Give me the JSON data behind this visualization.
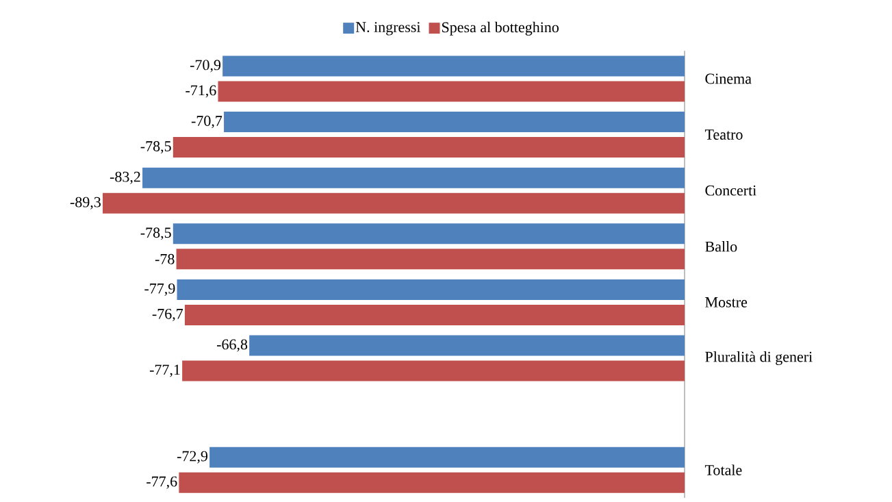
{
  "chart_data": {
    "type": "bar",
    "orientation": "horizontal",
    "categories": [
      "Cinema",
      "Teatro",
      "Concerti",
      "Ballo",
      "Mostre",
      "Pluralità di generi",
      null,
      "Totale"
    ],
    "series": [
      {
        "name": "N. ingressi",
        "color": "#4f81bd",
        "values": [
          -70.9,
          -70.7,
          -83.2,
          -78.5,
          -77.9,
          -66.8,
          null,
          -72.9
        ],
        "value_labels": [
          "-70,9",
          "-70,7",
          "-83,2",
          "-78,5",
          "-77,9",
          "-66,8",
          null,
          "-72,9"
        ]
      },
      {
        "name": "Spesa al botteghino",
        "color": "#c0504d",
        "values": [
          -71.6,
          -78.5,
          -89.3,
          -78,
          -76.7,
          -77.1,
          null,
          -77.6
        ],
        "value_labels": [
          "-71,6",
          "-78,5",
          "-89,3",
          "-78",
          "-76,7",
          "-77,1",
          null,
          "-77,6"
        ]
      }
    ],
    "xlim": [
      -89.3,
      0
    ],
    "legend": "top",
    "tick_labels": "y"
  }
}
